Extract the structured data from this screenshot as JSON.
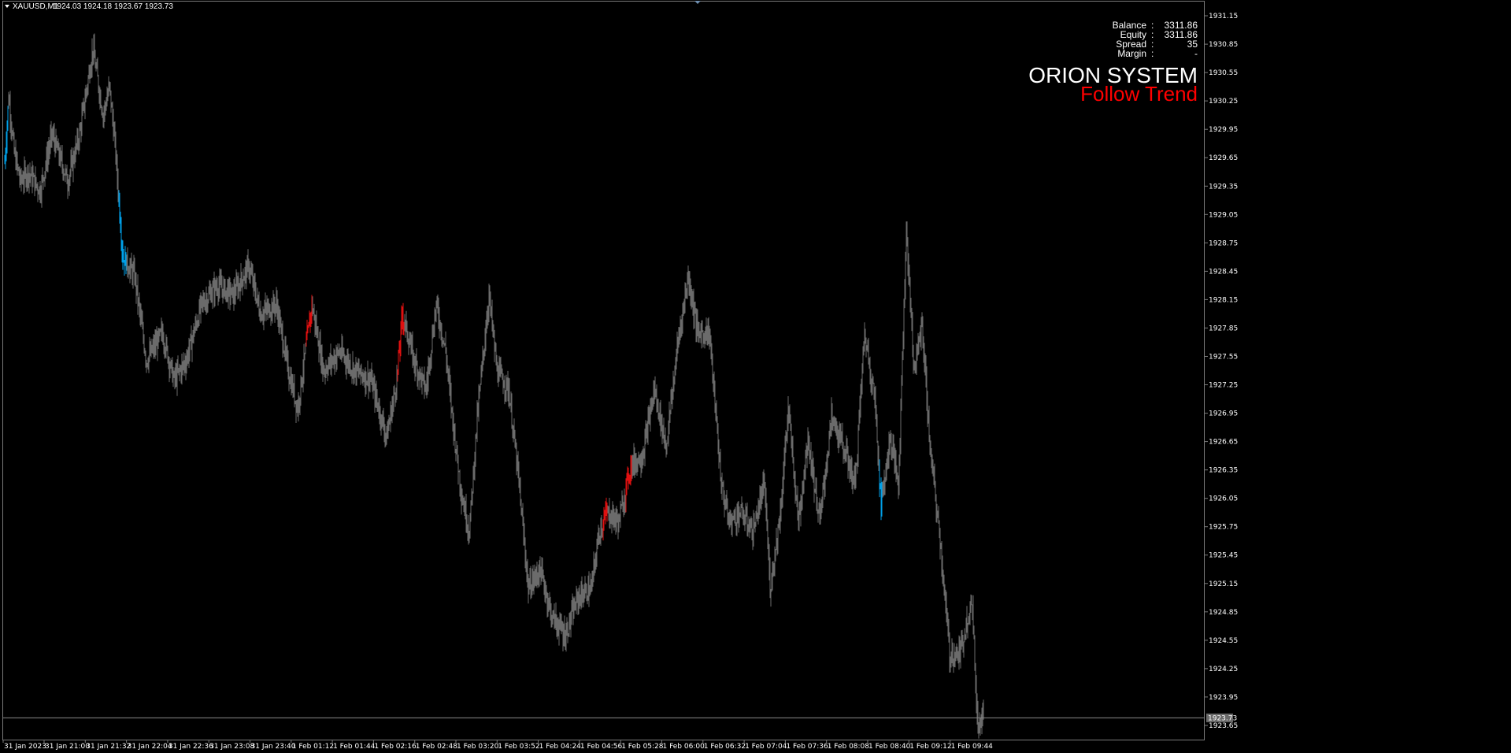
{
  "window": {
    "symbol_label": "XAUUSD,M1",
    "ohlc_label": "1924.03 1924.18 1923.67 1923.73"
  },
  "account_panel": {
    "rows": [
      {
        "label": "Balance",
        "sep": ":",
        "value": "3311.86"
      },
      {
        "label": "Equity",
        "sep": ":",
        "value": "3311.86"
      },
      {
        "label": "Spread",
        "sep": ":",
        "value": "35"
      },
      {
        "label": "Margin",
        "sep": ":",
        "value": "-"
      }
    ]
  },
  "banner": {
    "title": "ORION SYSTEM",
    "subtitle": "Follow Trend"
  },
  "colors": {
    "background": "#000000",
    "bar": "#6b6b6b",
    "bullish_signal": "#00a0e8",
    "bearish_signal": "#e01010",
    "axis": "#7a7a7a",
    "price_line": "#8a8a8a",
    "banner_subtitle": "#ff0000"
  },
  "chart_data": {
    "type": "bar",
    "subtype": "ohlc-price",
    "title": "",
    "symbol": "XAUUSD",
    "timeframe": "M1",
    "current_price_label": "1923.73",
    "ylim": [
      1923.5,
      1931.3
    ],
    "y_ticks": [
      "1931.15",
      "1930.85",
      "1930.55",
      "1930.25",
      "1929.95",
      "1929.65",
      "1929.35",
      "1929.05",
      "1928.75",
      "1928.45",
      "1928.15",
      "1927.85",
      "1927.55",
      "1927.25",
      "1926.95",
      "1926.65",
      "1926.35",
      "1926.05",
      "1925.75",
      "1925.45",
      "1925.15",
      "1924.85",
      "1924.55",
      "1924.25",
      "1923.95",
      "1923.65"
    ],
    "x_ticks": [
      "31 Jan 2023",
      "31 Jan 21:00",
      "31 Jan 21:32",
      "31 Jan 22:04",
      "31 Jan 22:36",
      "31 Jan 23:08",
      "31 Jan 23:40",
      "1 Feb 01:12",
      "1 Feb 01:44",
      "1 Feb 02:16",
      "1 Feb 02:48",
      "1 Feb 03:20",
      "1 Feb 03:52",
      "1 Feb 04:24",
      "1 Feb 04:56",
      "1 Feb 05:28",
      "1 Feb 06:00",
      "1 Feb 06:32",
      "1 Feb 07:04",
      "1 Feb 07:36",
      "1 Feb 08:08",
      "1 Feb 08:40",
      "1 Feb 09:12",
      "1 Feb 09:44"
    ],
    "price_path": [
      {
        "t": 0,
        "p": 1929.6
      },
      {
        "t": 5,
        "p": 1930.3
      },
      {
        "t": 12,
        "p": 1929.7
      },
      {
        "t": 20,
        "p": 1929.4
      },
      {
        "t": 30,
        "p": 1929.5
      },
      {
        "t": 45,
        "p": 1929.3
      },
      {
        "t": 60,
        "p": 1929.9
      },
      {
        "t": 80,
        "p": 1929.4
      },
      {
        "t": 95,
        "p": 1929.9
      },
      {
        "t": 112,
        "p": 1930.8
      },
      {
        "t": 125,
        "p": 1930.1
      },
      {
        "t": 133,
        "p": 1930.4
      },
      {
        "t": 140,
        "p": 1929.8
      },
      {
        "t": 150,
        "p": 1928.6
      },
      {
        "t": 165,
        "p": 1928.4
      },
      {
        "t": 180,
        "p": 1927.5
      },
      {
        "t": 200,
        "p": 1927.8
      },
      {
        "t": 215,
        "p": 1927.3
      },
      {
        "t": 230,
        "p": 1927.5
      },
      {
        "t": 250,
        "p": 1928.1
      },
      {
        "t": 270,
        "p": 1928.3
      },
      {
        "t": 290,
        "p": 1928.2
      },
      {
        "t": 310,
        "p": 1928.5
      },
      {
        "t": 325,
        "p": 1928.0
      },
      {
        "t": 345,
        "p": 1928.1
      },
      {
        "t": 360,
        "p": 1927.4
      },
      {
        "t": 372,
        "p": 1927.0
      },
      {
        "t": 390,
        "p": 1928.1
      },
      {
        "t": 405,
        "p": 1927.4
      },
      {
        "t": 425,
        "p": 1927.6
      },
      {
        "t": 445,
        "p": 1927.4
      },
      {
        "t": 465,
        "p": 1927.3
      },
      {
        "t": 485,
        "p": 1926.7
      },
      {
        "t": 498,
        "p": 1927.3
      },
      {
        "t": 505,
        "p": 1928.0
      },
      {
        "t": 520,
        "p": 1927.5
      },
      {
        "t": 535,
        "p": 1927.2
      },
      {
        "t": 548,
        "p": 1928.1
      },
      {
        "t": 560,
        "p": 1927.6
      },
      {
        "t": 570,
        "p": 1926.8
      },
      {
        "t": 580,
        "p": 1926.1
      },
      {
        "t": 590,
        "p": 1925.7
      },
      {
        "t": 600,
        "p": 1926.9
      },
      {
        "t": 615,
        "p": 1928.2
      },
      {
        "t": 625,
        "p": 1927.4
      },
      {
        "t": 640,
        "p": 1927.2
      },
      {
        "t": 652,
        "p": 1926.3
      },
      {
        "t": 665,
        "p": 1925.1
      },
      {
        "t": 680,
        "p": 1925.3
      },
      {
        "t": 695,
        "p": 1924.8
      },
      {
        "t": 712,
        "p": 1924.6
      },
      {
        "t": 728,
        "p": 1925.0
      },
      {
        "t": 745,
        "p": 1925.1
      },
      {
        "t": 755,
        "p": 1925.7
      },
      {
        "t": 765,
        "p": 1925.9
      },
      {
        "t": 780,
        "p": 1925.8
      },
      {
        "t": 795,
        "p": 1926.4
      },
      {
        "t": 810,
        "p": 1926.5
      },
      {
        "t": 825,
        "p": 1927.2
      },
      {
        "t": 840,
        "p": 1926.6
      },
      {
        "t": 855,
        "p": 1927.7
      },
      {
        "t": 868,
        "p": 1928.4
      },
      {
        "t": 880,
        "p": 1927.8
      },
      {
        "t": 895,
        "p": 1927.8
      },
      {
        "t": 910,
        "p": 1926.2
      },
      {
        "t": 920,
        "p": 1925.8
      },
      {
        "t": 935,
        "p": 1925.9
      },
      {
        "t": 950,
        "p": 1925.7
      },
      {
        "t": 965,
        "p": 1926.2
      },
      {
        "t": 972,
        "p": 1925.1
      },
      {
        "t": 985,
        "p": 1925.9
      },
      {
        "t": 995,
        "p": 1927.0
      },
      {
        "t": 1008,
        "p": 1925.8
      },
      {
        "t": 1020,
        "p": 1926.7
      },
      {
        "t": 1035,
        "p": 1925.8
      },
      {
        "t": 1050,
        "p": 1926.9
      },
      {
        "t": 1065,
        "p": 1926.6
      },
      {
        "t": 1080,
        "p": 1926.2
      },
      {
        "t": 1092,
        "p": 1927.8
      },
      {
        "t": 1105,
        "p": 1927.1
      },
      {
        "t": 1113,
        "p": 1926.0
      },
      {
        "t": 1125,
        "p": 1926.7
      },
      {
        "t": 1135,
        "p": 1926.2
      },
      {
        "t": 1145,
        "p": 1928.9
      },
      {
        "t": 1155,
        "p": 1927.4
      },
      {
        "t": 1165,
        "p": 1927.9
      },
      {
        "t": 1175,
        "p": 1926.6
      },
      {
        "t": 1188,
        "p": 1925.6
      },
      {
        "t": 1200,
        "p": 1924.4
      },
      {
        "t": 1213,
        "p": 1924.4
      },
      {
        "t": 1228,
        "p": 1925.0
      },
      {
        "t": 1236,
        "p": 1923.6
      },
      {
        "t": 1243,
        "p": 1923.9
      }
    ],
    "signals": [
      {
        "type": "buy",
        "t_start": 0,
        "t_end": 4
      },
      {
        "type": "buy",
        "t_start": 145,
        "t_end": 154
      },
      {
        "type": "sell",
        "t_start": 383,
        "t_end": 390
      },
      {
        "type": "sell",
        "t_start": 499,
        "t_end": 507
      },
      {
        "type": "sell",
        "t_start": 760,
        "t_end": 765
      },
      {
        "type": "sell",
        "t_start": 789,
        "t_end": 796
      },
      {
        "type": "buy",
        "t_start": 1111,
        "t_end": 1114
      }
    ]
  }
}
